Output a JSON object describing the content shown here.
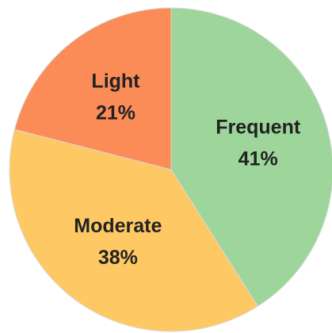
{
  "chart_data": {
    "type": "pie",
    "categories": [
      "Frequent",
      "Moderate",
      "Light"
    ],
    "values": [
      41,
      38,
      21
    ],
    "value_labels": [
      "41%",
      "38%",
      "21%"
    ],
    "colors": [
      "#9dd59a",
      "#fec864",
      "#fb8c57"
    ]
  }
}
